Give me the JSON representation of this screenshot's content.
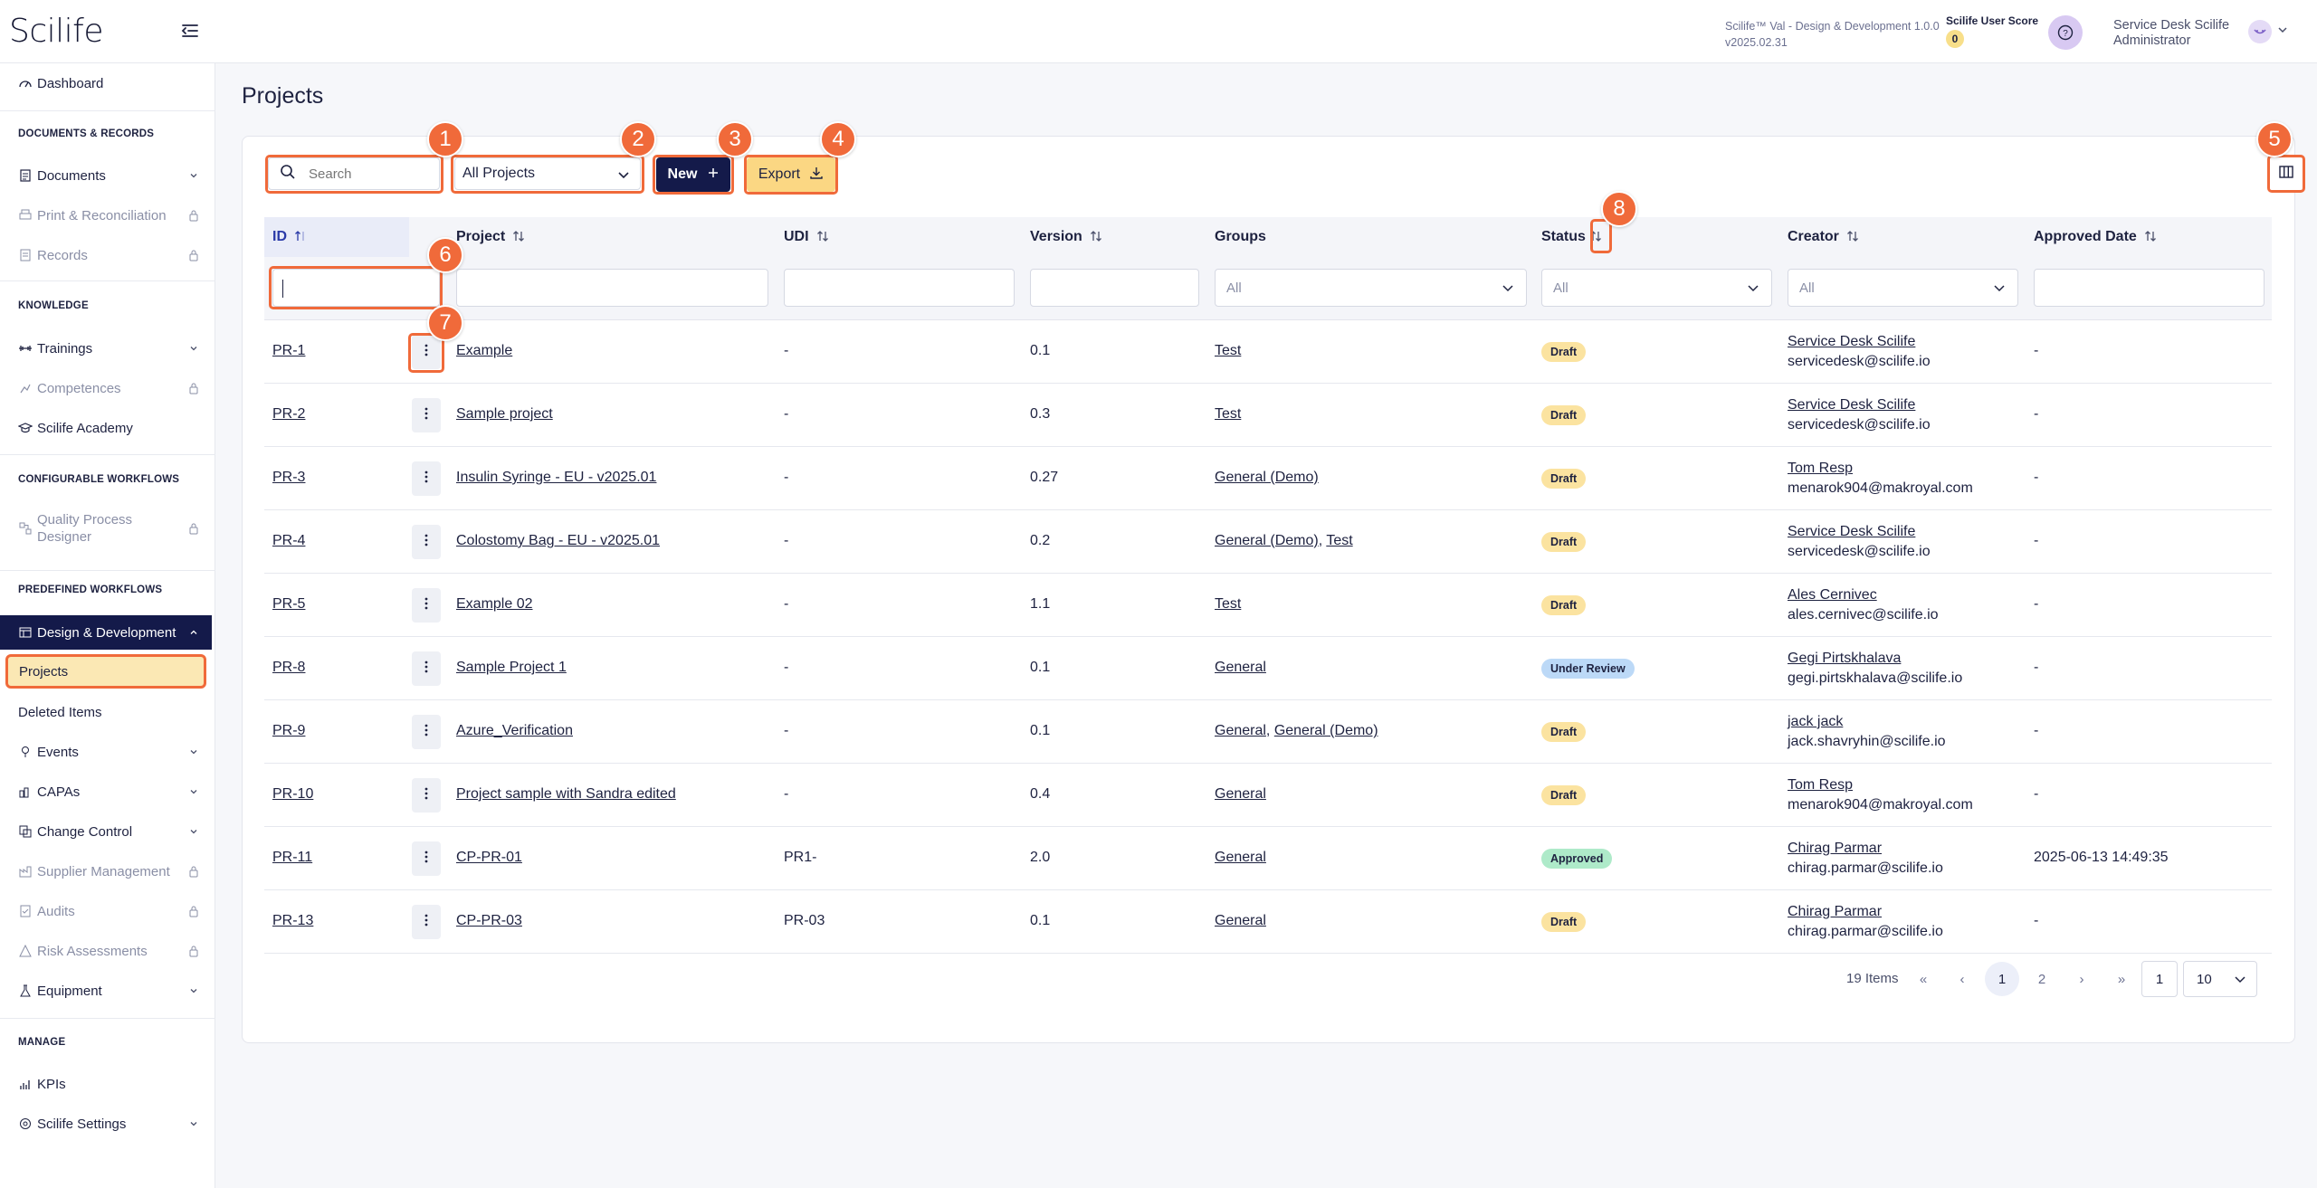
{
  "app": {
    "logo": "Scilife",
    "title_line1": "Scilife™ Val - Design & Development 1.0.0",
    "title_line2": "v2025.02.31",
    "score_label": "Scilife User Score",
    "score_value": "0",
    "user_name": "Service Desk Scilife",
    "user_role": "Administrator"
  },
  "sidebar": {
    "dashboard": "Dashboard",
    "section_docs": "DOCUMENTS & RECORDS",
    "documents": "Documents",
    "print_reconciliation": "Print & Reconciliation",
    "records": "Records",
    "section_knowledge": "KNOWLEDGE",
    "trainings": "Trainings",
    "competences": "Competences",
    "academy": "Scilife Academy",
    "section_config": "CONFIGURABLE WORKFLOWS",
    "qpd_line1": "Quality Process",
    "qpd_line2": "Designer",
    "section_predef": "PREDEFINED WORKFLOWS",
    "design_dev": "Design & Development",
    "projects": "Projects",
    "deleted_items": "Deleted Items",
    "events": "Events",
    "capas": "CAPAs",
    "change_control": "Change Control",
    "supplier_mgmt": "Supplier Management",
    "audits": "Audits",
    "risk": "Risk Assessments",
    "equipment": "Equipment",
    "section_manage": "MANAGE",
    "kpis": "KPIs",
    "settings": "Scilife Settings"
  },
  "page": {
    "title": "Projects"
  },
  "toolbar": {
    "search_placeholder": "Search",
    "project_filter": "All Projects",
    "new_label": "New",
    "export_label": "Export"
  },
  "annotations": [
    "1",
    "2",
    "3",
    "4",
    "5",
    "6",
    "7",
    "8"
  ],
  "table": {
    "headers": {
      "id": "ID",
      "project": "Project",
      "udi": "UDI",
      "version": "Version",
      "groups": "Groups",
      "status": "Status",
      "creator": "Creator",
      "approved": "Approved Date"
    },
    "filters": {
      "groups": "All",
      "status": "All",
      "creator": "All"
    },
    "rows": [
      {
        "id": "PR-1",
        "project": "Example",
        "udi": "-",
        "version": "0.1",
        "groups": [
          "Test"
        ],
        "status": "Draft",
        "creator_name": "Service Desk Scilife",
        "creator_email": "servicedesk@scilife.io",
        "approved": "-"
      },
      {
        "id": "PR-2",
        "project": "Sample project",
        "udi": "-",
        "version": "0.3",
        "groups": [
          "Test"
        ],
        "status": "Draft",
        "creator_name": "Service Desk Scilife",
        "creator_email": "servicedesk@scilife.io",
        "approved": "-"
      },
      {
        "id": "PR-3",
        "project": "Insulin Syringe - EU - v2025.01",
        "udi": "-",
        "version": "0.27",
        "groups": [
          "General (Demo)"
        ],
        "status": "Draft",
        "creator_name": "Tom Resp",
        "creator_email": "menarok904@makroyal.com",
        "approved": "-"
      },
      {
        "id": "PR-4",
        "project": "Colostomy Bag - EU - v2025.01",
        "udi": "-",
        "version": "0.2",
        "groups": [
          "General (Demo)",
          "Test"
        ],
        "status": "Draft",
        "creator_name": "Service Desk Scilife",
        "creator_email": "servicedesk@scilife.io",
        "approved": "-"
      },
      {
        "id": "PR-5",
        "project": "Example 02",
        "udi": "-",
        "version": "1.1",
        "groups": [
          "Test"
        ],
        "status": "Draft",
        "creator_name": "Ales Cernivec",
        "creator_email": "ales.cernivec@scilife.io",
        "approved": "-"
      },
      {
        "id": "PR-8",
        "project": "Sample Project 1",
        "udi": "-",
        "version": "0.1",
        "groups": [
          "General"
        ],
        "status": "Under Review",
        "creator_name": "Gegi Pirtskhalava",
        "creator_email": "gegi.pirtskhalava@scilife.io",
        "approved": "-"
      },
      {
        "id": "PR-9",
        "project": "Azure_Verification",
        "udi": "-",
        "version": "0.1",
        "groups": [
          "General",
          "General (Demo)"
        ],
        "status": "Draft",
        "creator_name": "jack jack",
        "creator_email": "jack.shavryhin@scilife.io",
        "approved": "-"
      },
      {
        "id": "PR-10",
        "project": "Project sample with Sandra edited",
        "udi": "-",
        "version": "0.4",
        "groups": [
          "General"
        ],
        "status": "Draft",
        "creator_name": "Tom Resp",
        "creator_email": "menarok904@makroyal.com",
        "approved": "-"
      },
      {
        "id": "PR-11",
        "project": "CP-PR-01",
        "udi": "PR1-",
        "version": "2.0",
        "groups": [
          "General"
        ],
        "status": "Approved",
        "creator_name": "Chirag Parmar",
        "creator_email": "chirag.parmar@scilife.io",
        "approved": "2025-06-13 14:49:35"
      },
      {
        "id": "PR-13",
        "project": "CP-PR-03",
        "udi": "PR-03",
        "version": "0.1",
        "groups": [
          "General"
        ],
        "status": "Draft",
        "creator_name": "Chirag Parmar",
        "creator_email": "chirag.parmar@scilife.io",
        "approved": "-"
      }
    ]
  },
  "pagination": {
    "total": "19 Items",
    "first": "«",
    "prev": "‹",
    "page1": "1",
    "page2": "2",
    "next": "›",
    "last": "»",
    "goto": "1",
    "page_size": "10"
  },
  "colors": {
    "accent": "#f06a3a",
    "navy": "#141a4a",
    "export": "#fbd783"
  }
}
